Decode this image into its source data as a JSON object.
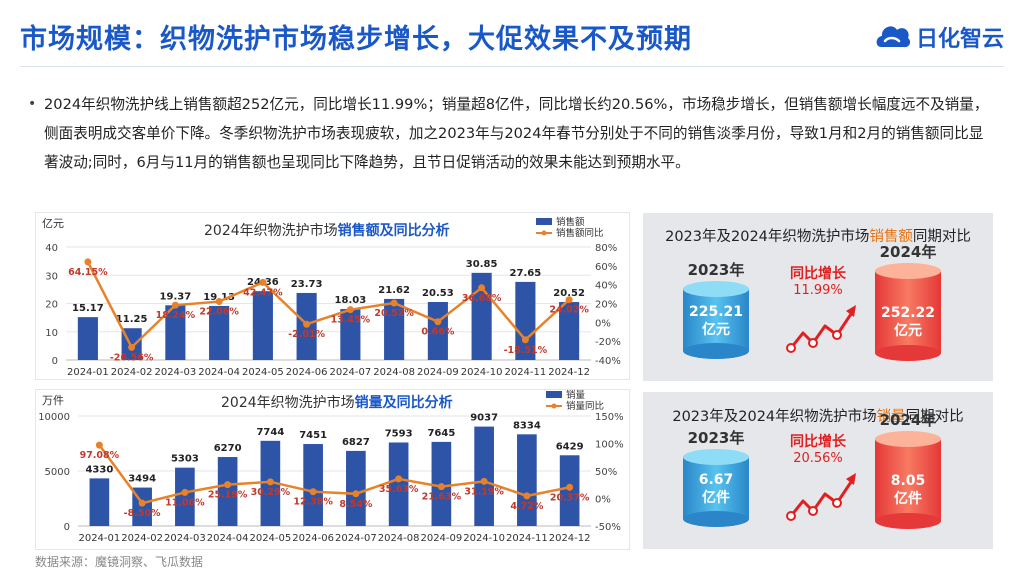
{
  "header": {
    "title": "市场规模：织物洗护市场稳步增长，大促效果不及预期",
    "logo_text": "日化智云"
  },
  "summary": {
    "bullet": "•",
    "text": "2024年织物洗护线上销售额超252亿元，同比增长11.99%；销量超8亿件，同比增长约20.56%，市场稳步增长，但销售额增长幅度远不及销量，侧面表明成交客单价下降。冬季织物洗护市场表现疲软，加之2023年与2024年春节分别处于不同的销售淡季月份，导致1月和2月的销售额同比显著波动;同时，6月与11月的销售额也呈现同比下降趋势，且节日促销活动的效果未能达到预期水平。"
  },
  "comparisons": {
    "sales": {
      "title_pre": "2023年及2024年织物洗护市场",
      "title_hl": "销售额",
      "title_post": "同期对比",
      "year_a": "2023年",
      "year_b": "2024年",
      "value_a": "225.21",
      "value_b": "252.22",
      "unit": "亿元",
      "growth_label": "同比增长",
      "growth_value": "11.99%"
    },
    "volume": {
      "title_pre": "2023年及2024年织物洗护市场",
      "title_hl": "销量",
      "title_post": "同期对比",
      "year_a": "2023年",
      "year_b": "2024年",
      "value_a": "6.67",
      "value_b": "8.05",
      "unit": "亿件",
      "growth_label": "同比增长",
      "growth_value": "20.56%"
    }
  },
  "source": "数据来源：魔镜洞察、飞瓜数据",
  "colors": {
    "bar": "#2e54a8",
    "line": "#e8822a",
    "accent": "#1a58c8",
    "growth_red": "#e02020",
    "label_red": "#c0392b"
  },
  "chart_data": [
    {
      "type": "bar",
      "title_pre": "2024年织物洗护市场",
      "title_hl": "销售额及同比分析",
      "ylabel": "亿元",
      "categories": [
        "2024-01",
        "2024-02",
        "2024-03",
        "2024-04",
        "2024-05",
        "2024-06",
        "2024-07",
        "2024-08",
        "2024-09",
        "2024-10",
        "2024-11",
        "2024-12"
      ],
      "series": [
        {
          "name": "销售额",
          "type": "bar",
          "axis": "left",
          "values": [
            15.17,
            11.25,
            19.37,
            19.13,
            24.36,
            23.73,
            18.03,
            21.62,
            20.53,
            30.85,
            27.65,
            20.52
          ],
          "labels": [
            "15.17",
            "11.25",
            "19.37",
            "19.13",
            "24.36",
            "23.73",
            "18.03",
            "21.62",
            "20.53",
            "30.85",
            "27.65",
            "20.52"
          ]
        },
        {
          "name": "销售额同比",
          "type": "line",
          "axis": "right",
          "values": [
            64.15,
            -26.56,
            18.24,
            22.06,
            42.47,
            -2.01,
            13.45,
            20.52,
            0.66,
            36.68,
            -18.51,
            24.02
          ],
          "labels": [
            "64.15%",
            "-26.56%",
            "18.24%",
            "22.06%",
            "42.47%",
            "-2.01%",
            "13.45%",
            "20.52%",
            "0.66%",
            "36.68%",
            "-18.51%",
            "24.02%"
          ]
        }
      ],
      "ylim": [
        0,
        40
      ],
      "yticks": [
        "0",
        "10",
        "20",
        "30",
        "40"
      ],
      "y2lim": [
        -40,
        80
      ],
      "y2ticks": [
        "-40%",
        "-20%",
        "0%",
        "20%",
        "40%",
        "60%",
        "80%"
      ],
      "legend": "top-right"
    },
    {
      "type": "bar",
      "title_pre": "2024年织物洗护市场",
      "title_hl": "销量及同比分析",
      "ylabel": "万件",
      "categories": [
        "2024-01",
        "2024-02",
        "2024-03",
        "2024-04",
        "2024-05",
        "2024-06",
        "2024-07",
        "2024-08",
        "2024-09",
        "2024-10",
        "2024-11",
        "2024-12"
      ],
      "series": [
        {
          "name": "销量",
          "type": "bar",
          "axis": "left",
          "values": [
            4330,
            3494,
            5303,
            6270,
            7744,
            7451,
            6827,
            7593,
            7645,
            9037,
            8334,
            6429
          ],
          "labels": [
            "4330",
            "3494",
            "5303",
            "6270",
            "7744",
            "7451",
            "6827",
            "7593",
            "7645",
            "9037",
            "8334",
            "6429"
          ]
        },
        {
          "name": "销量同比",
          "type": "line",
          "axis": "right",
          "values": [
            97.08,
            -8.5,
            11.06,
            25.19,
            30.29,
            12.38,
            8.54,
            35.63,
            21.63,
            31.19,
            4.72,
            20.37
          ],
          "labels": [
            "97.08%",
            "-8.50%",
            "11.06%",
            "25.19%",
            "30.29%",
            "12.38%",
            "8.54%",
            "35.63%",
            "21.63%",
            "31.19%",
            "4.72%",
            "20.37%"
          ]
        }
      ],
      "ylim": [
        0,
        10000
      ],
      "yticks": [
        "0",
        "5000",
        "10000"
      ],
      "y2lim": [
        -50,
        150
      ],
      "y2ticks": [
        "-50%",
        "0%",
        "50%",
        "100%",
        "150%"
      ],
      "legend": "top-right"
    }
  ]
}
